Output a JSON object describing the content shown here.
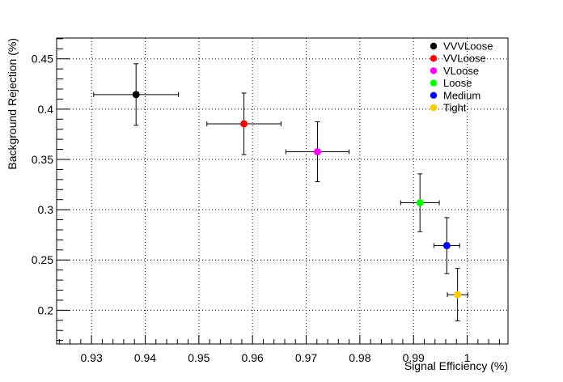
{
  "chart_data": {
    "type": "scatter",
    "title": "",
    "xlabel": "Signal Efficiency (%)",
    "ylabel": "Background Rejection (%)",
    "xlim": [
      0.9235,
      1.0076
    ],
    "ylim": [
      0.1665,
      0.4707
    ],
    "x_ticks": [
      0.93,
      0.94,
      0.95,
      0.96,
      0.97,
      0.98,
      0.99,
      1
    ],
    "x_tick_labels": [
      "0.93",
      "0.94",
      "0.95",
      "0.96",
      "0.97",
      "0.98",
      "0.99",
      "1"
    ],
    "y_ticks": [
      0.2,
      0.25,
      0.3,
      0.35,
      0.4,
      0.45
    ],
    "y_tick_labels": [
      "0.2",
      "0.25",
      "0.3",
      "0.35",
      "0.4",
      "0.45"
    ],
    "grid": true,
    "legend_position": "top-right",
    "series": [
      {
        "name": "VVVLoose",
        "color": "#000000",
        "x": 0.9383,
        "y": 0.4145,
        "xerr": 0.0079,
        "yerr": 0.0306
      },
      {
        "name": "VVLoose",
        "color": "#ff0000",
        "x": 0.9584,
        "y": 0.3854,
        "xerr": 0.0069,
        "yerr": 0.0306
      },
      {
        "name": "VLoose",
        "color": "#ff00ff",
        "x": 0.9721,
        "y": 0.3576,
        "xerr": 0.0059,
        "yerr": 0.0298
      },
      {
        "name": "Loose",
        "color": "#00ff00",
        "x": 0.9912,
        "y": 0.3069,
        "xerr": 0.0036,
        "yerr": 0.0287
      },
      {
        "name": "Medium",
        "color": "#0000ff",
        "x": 0.9962,
        "y": 0.2643,
        "xerr": 0.0024,
        "yerr": 0.0278
      },
      {
        "name": "Tight",
        "color": "#ffcc00",
        "x": 0.9982,
        "y": 0.2155,
        "xerr": 0.0019,
        "yerr": 0.0261
      }
    ]
  }
}
